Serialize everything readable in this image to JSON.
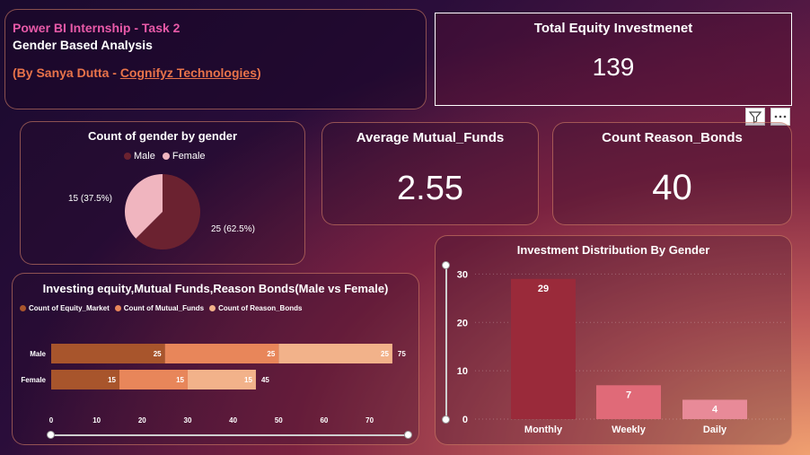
{
  "header": {
    "line1": "Power BI Internship - Task 2",
    "line2": "Gender Based Analysis",
    "line3_prefix": "(By Sanya Dutta - ",
    "line3_link": "Cognifyz Technologies",
    "line3_suffix": ")"
  },
  "kpis": {
    "total_equity": {
      "title": "Total Equity Investmenet",
      "value": "139"
    },
    "avg_mutual": {
      "title": "Average Mutual_Funds",
      "value": "2.55"
    },
    "count_bonds": {
      "title": "Count Reason_Bonds",
      "value": "40"
    }
  },
  "toolbar": {
    "filter_icon": "filter-icon",
    "more_icon": "more-options-icon"
  },
  "colors": {
    "male": "#6b2230",
    "female": "#f0b5bf",
    "equity": "#a8552c",
    "mutual": "#e8865a",
    "bonds": "#f2b28a",
    "monthly": "#9a2a3a",
    "weekly": "#e06a78",
    "daily": "#e88a98"
  },
  "chart_data": [
    {
      "type": "pie",
      "title": "Count of gender by gender",
      "legend": [
        "Male",
        "Female"
      ],
      "slices": [
        {
          "name": "Male",
          "value": 25,
          "label": "25 (62.5%)"
        },
        {
          "name": "Female",
          "value": 15,
          "label": "15 (37.5%)"
        }
      ]
    },
    {
      "type": "bar",
      "orientation": "horizontal-stacked",
      "title": "Investing equity,Mutual Funds,Reason Bonds(Male vs Female)",
      "categories": [
        "Male",
        "Female"
      ],
      "series": [
        {
          "name": "Count of Equity_Market",
          "values": [
            25,
            15
          ]
        },
        {
          "name": "Count of Mutual_Funds",
          "values": [
            25,
            15
          ]
        },
        {
          "name": "Count of Reason_Bonds",
          "values": [
            25,
            15
          ]
        }
      ],
      "totals": [
        75,
        45
      ],
      "xticks": [
        "0",
        "10",
        "20",
        "30",
        "40",
        "50",
        "60",
        "70"
      ],
      "xlim": [
        0,
        76
      ]
    },
    {
      "type": "bar",
      "title": "Investment Distribution By Gender",
      "categories": [
        "Monthly",
        "Weekly",
        "Daily"
      ],
      "values": [
        29,
        7,
        4
      ],
      "yticks": [
        "0",
        "10",
        "20",
        "30"
      ],
      "ylim": [
        0,
        31
      ]
    }
  ]
}
